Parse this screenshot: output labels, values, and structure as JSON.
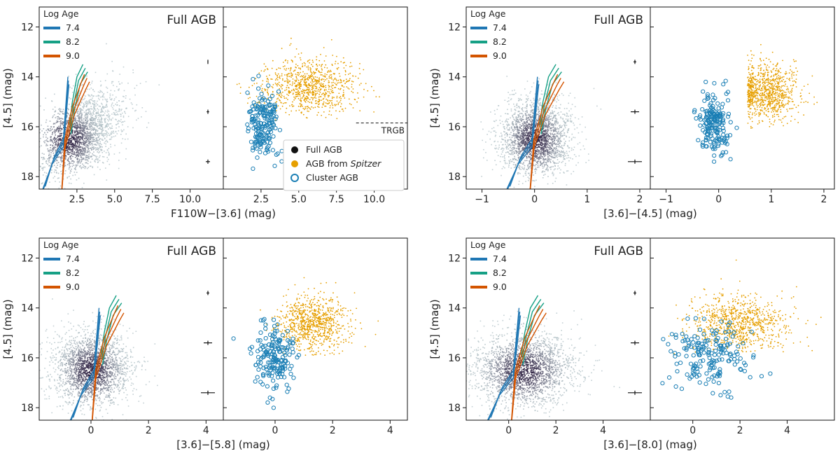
{
  "figure": {
    "legend_title": "Log Age",
    "panel_title": "Full AGB",
    "age_labels": [
      "7.4",
      "8.2",
      "9.0"
    ],
    "colors": {
      "age_7_4": "#1f77b4",
      "age_8_2": "#16a085",
      "age_9_0": "#d35400",
      "full_agb": "#111111",
      "spitzer_agb": "#e69f00",
      "cluster_agb": "#1b7fb5",
      "density_low": "#b8c8cc",
      "density_high": "#2e2142"
    },
    "markers_legend": {
      "full": "Full AGB",
      "spitzer_prefix": "AGB from ",
      "spitzer_italic": "Spitzer",
      "cluster": "Cluster AGB"
    },
    "trgb_label": "TRGB"
  },
  "chart_data": [
    {
      "id": "top-left",
      "type": "scatter",
      "title": "Full AGB",
      "xlabel": "F110W−[3.6] (mag)",
      "ylabel": "[4.5] (mag)",
      "xlim": [
        0,
        12.2
      ],
      "ylim": [
        18.5,
        11.2
      ],
      "xticks": [
        "2.5",
        "5.0",
        "7.5",
        "10.0"
      ],
      "xtick_values": [
        2.5,
        5.0,
        7.5,
        10.0
      ],
      "yticks": [
        "12",
        "14",
        "16",
        "18"
      ],
      "ytick_values": [
        12,
        14,
        16,
        18
      ],
      "trgb": 15.85,
      "right_panel": {
        "spitzer_center": [
          5.6,
          14.4
        ],
        "cluster_center": [
          2.7,
          15.9
        ],
        "legend": true
      }
    },
    {
      "id": "top-right",
      "type": "scatter",
      "title": "Full AGB",
      "xlabel": "[3.6]−[4.5] (mag)",
      "ylabel": "[4.5] (mag)",
      "xlim": [
        -1.3,
        2.2
      ],
      "ylim": [
        18.5,
        11.2
      ],
      "xticks": [
        "−1",
        "0",
        "1",
        "2"
      ],
      "xtick_values": [
        -1,
        0,
        1,
        2
      ],
      "yticks": [
        "12",
        "14",
        "16",
        "18"
      ],
      "ytick_values": [
        12,
        14,
        16,
        18
      ],
      "right_panel": {
        "spitzer_center": [
          0.9,
          14.6
        ],
        "cluster_center": [
          -0.1,
          15.9
        ]
      }
    },
    {
      "id": "bottom-left",
      "type": "scatter",
      "title": "Full AGB",
      "xlabel": "[3.6]−[5.8] (mag)",
      "ylabel": "[4.5] (mag)",
      "xlim": [
        -1.8,
        4.6
      ],
      "ylim": [
        18.5,
        11.2
      ],
      "xticks": [
        "0",
        "2",
        "4"
      ],
      "xtick_values": [
        0,
        2,
        4
      ],
      "yticks": [
        "12",
        "14",
        "16",
        "18"
      ],
      "ytick_values": [
        12,
        14,
        16,
        18
      ],
      "right_panel": {
        "spitzer_center": [
          1.3,
          14.6
        ],
        "cluster_center": [
          0.0,
          16.0
        ]
      }
    },
    {
      "id": "bottom-right",
      "type": "scatter",
      "title": "Full AGB",
      "xlabel": "[3.6]−[8.0] (mag)",
      "ylabel": "[4.5] (mag)",
      "xlim": [
        -1.8,
        6.0
      ],
      "ylim": [
        18.5,
        11.2
      ],
      "xticks": [
        "0",
        "2",
        "4"
      ],
      "xtick_values": [
        0,
        2,
        4
      ],
      "yticks": [
        "12",
        "14",
        "16",
        "18"
      ],
      "ytick_values": [
        12,
        14,
        16,
        18
      ],
      "right_panel": {
        "spitzer_center": [
          2.0,
          14.6
        ],
        "cluster_center": [
          0.6,
          16.0
        ]
      }
    }
  ]
}
